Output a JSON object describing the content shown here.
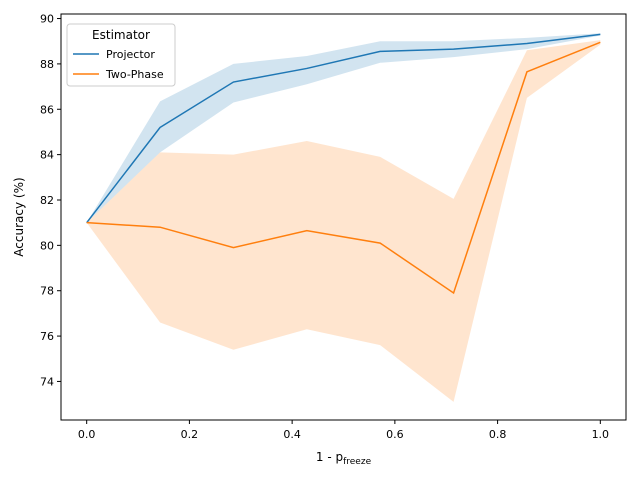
{
  "chart_data": {
    "type": "line",
    "title": "",
    "xlabel_main": "1 - p",
    "xlabel_sub": "freeze",
    "ylabel": "Accuracy (%)",
    "xlim": [
      -0.05,
      1.05
    ],
    "ylim": [
      72.3,
      90.2
    ],
    "x_ticks": [
      0.0,
      0.2,
      0.4,
      0.6,
      0.8,
      1.0
    ],
    "x_tick_labels": [
      "0.0",
      "0.2",
      "0.4",
      "0.6",
      "0.8",
      "1.0"
    ],
    "y_ticks": [
      74,
      76,
      78,
      80,
      82,
      84,
      86,
      88,
      90
    ],
    "y_tick_labels": [
      "74",
      "76",
      "78",
      "80",
      "82",
      "84",
      "86",
      "88",
      "90"
    ],
    "x": [
      0.0,
      0.1429,
      0.2857,
      0.4286,
      0.5714,
      0.7143,
      0.8571,
      1.0
    ],
    "series": [
      {
        "name": "Projector",
        "color": "#1f77b4",
        "band_color": "#1f77b4",
        "values": [
          81.0,
          85.2,
          87.2,
          87.8,
          88.55,
          88.65,
          88.9,
          89.3
        ],
        "lower": [
          81.0,
          84.1,
          86.3,
          87.1,
          88.05,
          88.3,
          88.65,
          89.25
        ],
        "upper": [
          81.0,
          86.35,
          88.0,
          88.35,
          89.0,
          89.0,
          89.15,
          89.35
        ]
      },
      {
        "name": "Two-Phase",
        "color": "#ff7f0e",
        "band_color": "#ff7f0e",
        "values": [
          81.0,
          80.8,
          79.9,
          80.65,
          80.1,
          77.9,
          87.65,
          88.95
        ],
        "lower": [
          81.0,
          76.6,
          75.4,
          76.3,
          75.6,
          73.1,
          86.5,
          88.85
        ],
        "upper": [
          81.0,
          84.1,
          84.0,
          84.6,
          83.9,
          82.05,
          88.6,
          89.05
        ]
      }
    ],
    "legend": {
      "title": "Estimator",
      "position": "top-left"
    }
  }
}
